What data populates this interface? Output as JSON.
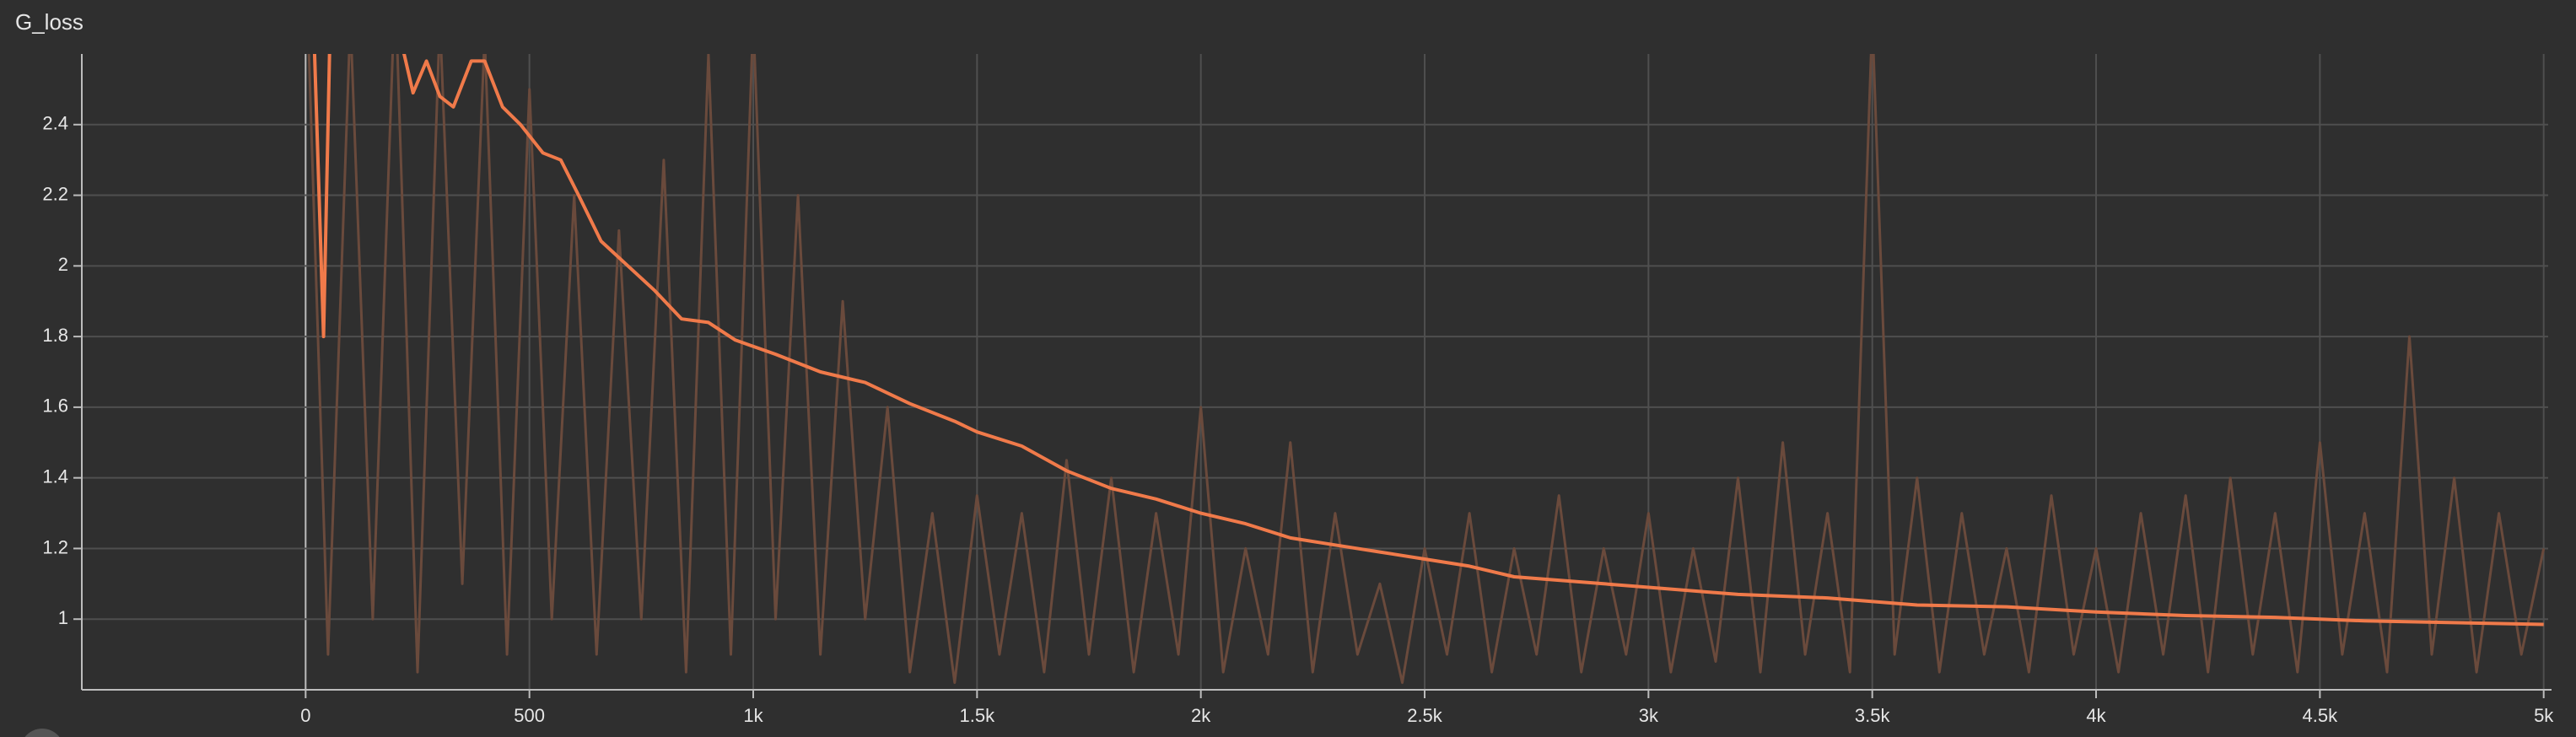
{
  "chart_data": {
    "type": "line",
    "title": "G_loss",
    "xlim": [
      -500,
      5010
    ],
    "ylim": [
      0.8,
      2.6
    ],
    "xticks": [
      0,
      500,
      {
        "value": 1000,
        "label": "1k"
      },
      {
        "value": 1500,
        "label": "1.5k"
      },
      {
        "value": 2000,
        "label": "2k"
      },
      {
        "value": 2500,
        "label": "2.5k"
      },
      {
        "value": 3000,
        "label": "3k"
      },
      {
        "value": 3500,
        "label": "3.5k"
      },
      {
        "value": 4000,
        "label": "4k"
      },
      {
        "value": 4500,
        "label": "4.5k"
      },
      {
        "value": 5000,
        "label": "5k"
      }
    ],
    "yticks": [
      1,
      1.2,
      1.4,
      1.6,
      1.8,
      2,
      2.2,
      2.4
    ],
    "grid": true,
    "series": [
      {
        "color": "#6a4a3c",
        "x": [
          0,
          50,
          100,
          150,
          200,
          250,
          300,
          350,
          400,
          450,
          500,
          550,
          600,
          650,
          700,
          750,
          800,
          850,
          900,
          950,
          1000,
          1050,
          1100,
          1150,
          1200,
          1250,
          1300,
          1350,
          1400,
          1450,
          1500,
          1550,
          1600,
          1650,
          1700,
          1750,
          1800,
          1850,
          1900,
          1950,
          2000,
          2050,
          2100,
          2150,
          2200,
          2250,
          2300,
          2350,
          2400,
          2450,
          2500,
          2550,
          2600,
          2650,
          2700,
          2750,
          2800,
          2850,
          2900,
          2950,
          3000,
          3050,
          3100,
          3150,
          3200,
          3250,
          3300,
          3350,
          3400,
          3450,
          3500,
          3550,
          3600,
          3650,
          3700,
          3750,
          3800,
          3850,
          3900,
          3950,
          4000,
          4050,
          4100,
          4150,
          4200,
          4250,
          4300,
          4350,
          4400,
          4450,
          4500,
          4550,
          4600,
          4650,
          4700,
          4750,
          4800,
          4850,
          4900,
          4950,
          5000
        ],
        "values": [
          2.9,
          0.9,
          2.7,
          1.0,
          2.8,
          0.85,
          2.7,
          1.1,
          2.65,
          0.9,
          2.5,
          1.0,
          2.2,
          0.9,
          2.1,
          1.0,
          2.3,
          0.85,
          2.6,
          0.9,
          2.7,
          1.0,
          2.2,
          0.9,
          1.9,
          1.0,
          1.6,
          0.85,
          1.3,
          0.82,
          1.35,
          0.9,
          1.3,
          0.85,
          1.45,
          0.9,
          1.4,
          0.85,
          1.3,
          0.9,
          1.6,
          0.85,
          1.2,
          0.9,
          1.5,
          0.85,
          1.3,
          0.9,
          1.1,
          0.82,
          1.2,
          0.9,
          1.3,
          0.85,
          1.2,
          0.9,
          1.35,
          0.85,
          1.2,
          0.9,
          1.3,
          0.85,
          1.2,
          0.88,
          1.4,
          0.85,
          1.5,
          0.9,
          1.3,
          0.85,
          2.7,
          0.9,
          1.4,
          0.85,
          1.3,
          0.9,
          1.2,
          0.85,
          1.35,
          0.9,
          1.2,
          0.85,
          1.3,
          0.9,
          1.35,
          0.85,
          1.4,
          0.9,
          1.3,
          0.85,
          1.5,
          0.9,
          1.3,
          0.85,
          1.8,
          0.9,
          1.4,
          0.85,
          1.3,
          0.9,
          1.2
        ]
      },
      {
        "color": "#f07a4a",
        "x": [
          5,
          40,
          60,
          220,
          240,
          270,
          300,
          330,
          370,
          400,
          440,
          480,
          530,
          570,
          610,
          660,
          720,
          780,
          840,
          900,
          960,
          1050,
          1150,
          1250,
          1350,
          1450,
          1500,
          1600,
          1700,
          1800,
          1900,
          2000,
          2100,
          2200,
          2300,
          2400,
          2500,
          2600,
          2700,
          2800,
          2900,
          3000,
          3200,
          3400,
          3600,
          3800,
          4000,
          4200,
          4400,
          4600,
          4800,
          5000
        ],
        "values": [
          3.2,
          1.8,
          3.0,
          2.6,
          2.49,
          2.58,
          2.48,
          2.45,
          2.58,
          2.58,
          2.45,
          2.4,
          2.32,
          2.3,
          2.2,
          2.07,
          2.0,
          1.93,
          1.85,
          1.84,
          1.79,
          1.75,
          1.7,
          1.67,
          1.61,
          1.56,
          1.53,
          1.49,
          1.42,
          1.37,
          1.34,
          1.3,
          1.27,
          1.23,
          1.21,
          1.19,
          1.17,
          1.15,
          1.12,
          1.11,
          1.1,
          1.09,
          1.07,
          1.06,
          1.04,
          1.035,
          1.02,
          1.01,
          1.005,
          0.995,
          0.99,
          0.985
        ]
      }
    ]
  }
}
